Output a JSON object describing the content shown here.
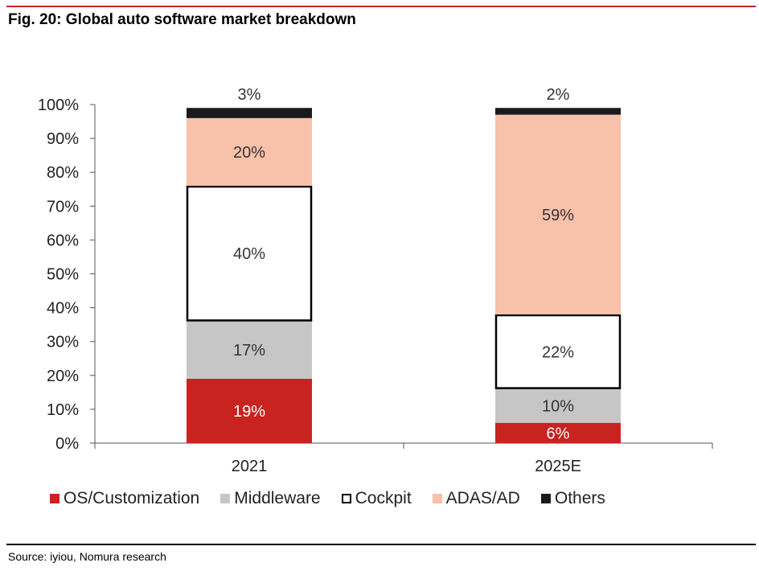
{
  "figure": {
    "title": "Fig. 20: Global auto software market breakdown",
    "source": "Source: iyiou, Nomura research",
    "accent_color": "#c0282a"
  },
  "chart_data": {
    "type": "bar",
    "stacked": true,
    "categories": [
      "2021",
      "2025E"
    ],
    "ylim": [
      0,
      100
    ],
    "yticks": [
      "0%",
      "10%",
      "20%",
      "30%",
      "40%",
      "50%",
      "60%",
      "70%",
      "80%",
      "90%",
      "100%"
    ],
    "grid": false,
    "legend_position": "bottom",
    "series": [
      {
        "name": "OS/Customization",
        "values": [
          19,
          6
        ],
        "labels": [
          "19%",
          "6%"
        ],
        "color": "#c8231f",
        "text_color": "#ffffff",
        "stroke": "none"
      },
      {
        "name": "Middleware",
        "values": [
          17,
          10
        ],
        "labels": [
          "17%",
          "10%"
        ],
        "color": "#c6c6c6",
        "text_color": "#333333",
        "stroke": "none"
      },
      {
        "name": "Cockpit",
        "values": [
          40,
          22
        ],
        "labels": [
          "40%",
          "22%"
        ],
        "color": "#ffffff",
        "text_color": "#333333",
        "stroke": "#000000"
      },
      {
        "name": "ADAS/AD",
        "values": [
          20,
          59
        ],
        "labels": [
          "20%",
          "59%"
        ],
        "color": "#f8c1aa",
        "text_color": "#333333",
        "stroke": "none"
      },
      {
        "name": "Others",
        "values": [
          3,
          2
        ],
        "labels": [
          "3%",
          "2%"
        ],
        "color": "#1a1a1a",
        "text_color": "#333333",
        "stroke": "none",
        "label_above": true
      }
    ]
  }
}
